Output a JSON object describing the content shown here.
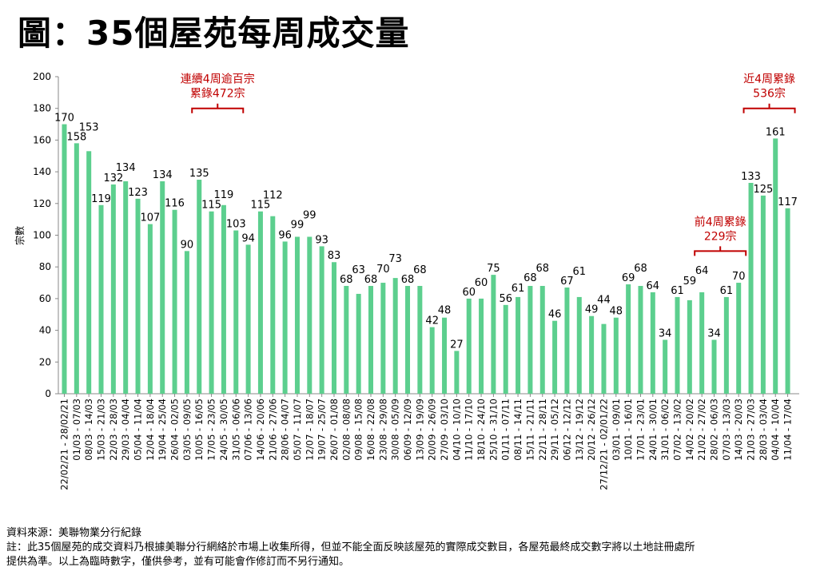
{
  "chart_data": {
    "type": "bar",
    "title": "圖：35個屋苑每周成交量",
    "xlabel": "",
    "ylabel": "宗數",
    "ylim": [
      0,
      200
    ],
    "yticks": [
      0,
      20,
      40,
      60,
      80,
      100,
      120,
      140,
      160,
      180,
      200
    ],
    "grid": false,
    "bar_color": "#5ccf8e",
    "annotation_color": "#c00000",
    "categories": [
      "22/02/21 - 28/02/21",
      "01/03 - 07/03",
      "08/03 - 14/03",
      "15/03 - 21/03",
      "22/03 - 28/03",
      "29/03 - 04/04",
      "05/04 - 11/04",
      "12/04 - 18/04",
      "19/04 - 25/04",
      "26/04 - 02/05",
      "03/05 - 09/05",
      "10/05 - 16/05",
      "17/05 - 23/05",
      "24/05 - 30/05",
      "31/05 - 06/06",
      "07/06 - 13/06",
      "14/06 - 20/06",
      "21/06 - 27/06",
      "28/06 - 04/07",
      "05/07 - 11/07",
      "12/07 - 18/07",
      "19/07 - 25/07",
      "26/07 - 01/08",
      "02/08 - 08/08",
      "09/08 - 15/08",
      "16/08 - 22/08",
      "23/08 - 29/08",
      "30/08 - 05/09",
      "06/09 - 12/09",
      "13/09 - 19/09",
      "20/09 - 26/09",
      "27/09 - 03/10",
      "04/10 - 10/10",
      "11/10 - 17/10",
      "18/10 - 24/10",
      "25/10 - 31/10",
      "01/11 - 07/11",
      "08/11 - 14/11",
      "15/11 - 21/11",
      "22/11 - 28/11",
      "29/11 - 05/12",
      "06/12 - 12/12",
      "13/12 - 19/12",
      "20/12 - 26/12",
      "27/12/21 - 02/01/22",
      "03/01 - 09/01",
      "10/01 - 16/01",
      "17/01 - 23/01",
      "24/01 - 30/01",
      "31/01 - 06/02",
      "07/02 - 13/02",
      "14/02 - 20/02",
      "21/02 - 27/02",
      "28/02 - 06/03",
      "07/03 - 13/03",
      "14/03 - 20/03",
      "21/03 - 27/03",
      "28/03 - 03/04",
      "04/04 - 10/04",
      "11/04 - 17/04"
    ],
    "values": [
      170,
      158,
      153,
      119,
      132,
      134,
      123,
      107,
      134,
      116,
      90,
      135,
      115,
      119,
      103,
      94,
      115,
      112,
      96,
      99,
      99,
      93,
      83,
      68,
      63,
      68,
      70,
      73,
      68,
      68,
      42,
      48,
      27,
      60,
      60,
      75,
      56,
      61,
      68,
      68,
      46,
      67,
      61,
      49,
      44,
      48,
      69,
      68,
      64,
      34,
      61,
      59,
      64,
      34,
      61,
      70,
      133,
      125,
      161,
      117
    ],
    "annotations": [
      {
        "lines": [
          "連續4周逾百宗",
          "累錄472宗"
        ],
        "from": 11,
        "to": 14,
        "level": 180
      },
      {
        "lines": [
          "前4周累錄",
          "229宗"
        ],
        "from": 52,
        "to": 55,
        "level": 90
      },
      {
        "lines": [
          "近4周累錄",
          "536宗"
        ],
        "from": 56,
        "to": 59,
        "level": 180
      }
    ]
  },
  "notes": {
    "source": "資料來源：美聯物業分行紀錄",
    "note_line1": "註：此35個屋苑的成交資料乃根據美聯分行網絡於市場上收集所得，但並不能全面反映該屋苑的實際成交數目，各屋苑最終成交數字將以土地註冊處所",
    "note_line2": "提供為準。以上為臨時數字，僅供參考，並有可能會作修訂而不另行通知。"
  }
}
